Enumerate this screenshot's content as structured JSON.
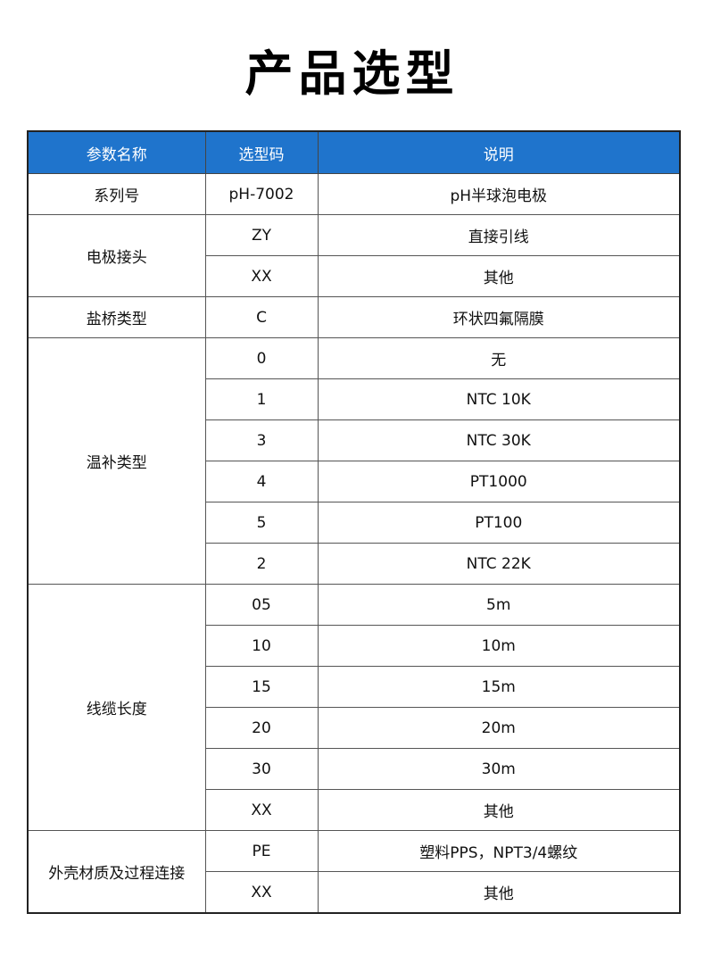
{
  "title": "产品选型",
  "header_color": "#1f74cc",
  "headers": [
    "参数名称",
    "选型码",
    "说明"
  ],
  "groups": [
    {
      "name": "系列号",
      "rows": [
        [
          "pH-7002",
          "pH半球泡电极"
        ]
      ]
    },
    {
      "name": "电极接头",
      "rows": [
        [
          "ZY",
          "直接引线"
        ],
        [
          "XX",
          "其他"
        ]
      ]
    },
    {
      "name": "盐桥类型",
      "rows": [
        [
          "C",
          "环状四氟隔膜"
        ]
      ]
    },
    {
      "name": "温补类型",
      "rows": [
        [
          "0",
          "无"
        ],
        [
          "1",
          "NTC 10K"
        ],
        [
          "3",
          "NTC 30K"
        ],
        [
          "4",
          "PT1000"
        ],
        [
          "5",
          "PT100"
        ],
        [
          "2",
          "NTC 22K"
        ]
      ]
    },
    {
      "name": "线缆长度",
      "rows": [
        [
          "05",
          "5m"
        ],
        [
          "10",
          "10m"
        ],
        [
          "15",
          "15m"
        ],
        [
          "20",
          "20m"
        ],
        [
          "30",
          "30m"
        ],
        [
          "XX",
          "其他"
        ]
      ]
    },
    {
      "name": "外壳材质及过程连接",
      "rows": [
        [
          "PE",
          "塑料PPS，NPT3/4螺纹"
        ],
        [
          "XX",
          "其他"
        ]
      ]
    }
  ]
}
